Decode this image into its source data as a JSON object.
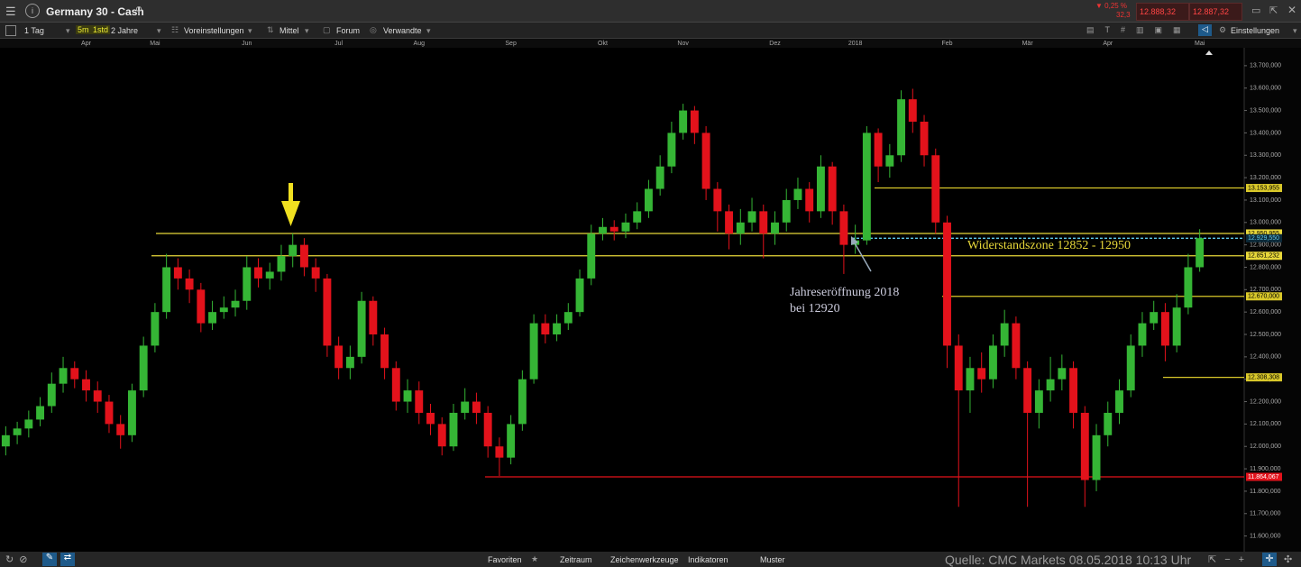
{
  "header": {
    "title": "Germany 30 - Cash",
    "change_pct": "▼ 0,25 %",
    "change_pts": "32,3",
    "sell": "12.888,32",
    "buy": "12.887,32"
  },
  "toolbar": {
    "interval": "1 Tag",
    "quick_5m": "5m",
    "quick_1h": "1std",
    "range": "2 Jahre",
    "presets": "Voreinstellungen",
    "size": "Mittel",
    "forum": "Forum",
    "related": "Verwandte",
    "settings": "Einstellungen"
  },
  "chart_data": {
    "type": "candlestick",
    "up_color": "#35b535",
    "down_color": "#e3121b",
    "categories": [
      null,
      null,
      null,
      null,
      null,
      null,
      null,
      "Apr",
      null,
      null,
      null,
      null,
      null,
      "Mai",
      null,
      null,
      null,
      null,
      null,
      null,
      null,
      "Jun",
      null,
      null,
      null,
      null,
      null,
      null,
      null,
      "Jul",
      null,
      null,
      null,
      null,
      null,
      null,
      "Aug",
      null,
      null,
      null,
      null,
      null,
      null,
      null,
      "Sep",
      null,
      null,
      null,
      null,
      null,
      null,
      null,
      "Okt",
      null,
      null,
      null,
      null,
      null,
      null,
      "Nov",
      null,
      null,
      null,
      null,
      null,
      null,
      null,
      "Dez",
      null,
      null,
      null,
      null,
      null,
      null,
      "2018",
      null,
      null,
      null,
      null,
      null,
      null,
      null,
      "Feb",
      null,
      null,
      null,
      null,
      null,
      null,
      "Mär",
      null,
      null,
      null,
      null,
      null,
      null,
      "Apr",
      null,
      null,
      null,
      null,
      null,
      null,
      null,
      "Mai"
    ],
    "open": [
      12000,
      12050,
      12080,
      12120,
      12180,
      12280,
      12350,
      12300,
      12250,
      12200,
      12100,
      12050,
      12250,
      12450,
      12600,
      12800,
      12750,
      12700,
      12550,
      12600,
      12620,
      12650,
      12800,
      12750,
      12780,
      12850,
      12900,
      12800,
      12750,
      12450,
      12350,
      12400,
      12650,
      12500,
      12350,
      12200,
      12250,
      12150,
      12100,
      12000,
      12150,
      12200,
      12150,
      12000,
      11950,
      12100,
      12300,
      12550,
      12500,
      12550,
      12600,
      12750,
      12950,
      12980,
      12960,
      13000,
      13050,
      13150,
      13250,
      13400,
      13500,
      13400,
      13150,
      13050,
      12950,
      13000,
      13050,
      12950,
      13000,
      13100,
      13150,
      13050,
      13250,
      13050,
      12900,
      12920,
      13400,
      13250,
      13300,
      13550,
      13450,
      13300,
      13000,
      12450,
      12250,
      12350,
      12300,
      12450,
      12550,
      12350,
      12150,
      12250,
      12300,
      12350,
      12150,
      11850,
      12050,
      12150,
      12250,
      12450,
      12550,
      12600,
      12450,
      12620,
      12800
    ],
    "high": [
      12090,
      12110,
      12160,
      12220,
      12330,
      12400,
      12380,
      12340,
      12290,
      12230,
      12140,
      12280,
      12490,
      12640,
      12860,
      12840,
      12790,
      12730,
      12650,
      12670,
      12700,
      12850,
      12840,
      12820,
      12900,
      12951,
      12930,
      12840,
      12770,
      12490,
      12450,
      12690,
      12670,
      12530,
      12380,
      12300,
      12290,
      12190,
      12130,
      12190,
      12260,
      12240,
      12180,
      12040,
      12140,
      12340,
      12590,
      12590,
      12590,
      12640,
      12790,
      12990,
      13020,
      13010,
      13040,
      13090,
      13190,
      13300,
      13450,
      13530,
      13520,
      13430,
      13180,
      13080,
      13060,
      13110,
      13080,
      13050,
      13150,
      13200,
      13180,
      13300,
      13270,
      13080,
      12990,
      13430,
      13420,
      13350,
      13590,
      13597,
      13480,
      13330,
      13030,
      12500,
      12400,
      12420,
      12500,
      12610,
      12580,
      12380,
      12300,
      12400,
      12410,
      12380,
      12180,
      12100,
      12200,
      12300,
      12500,
      12600,
      12650,
      12640,
      12680,
      12860,
      12970
    ],
    "low": [
      11960,
      12010,
      12040,
      12090,
      12150,
      12240,
      12260,
      12200,
      12150,
      12060,
      11990,
      12020,
      12220,
      12420,
      12570,
      12700,
      12640,
      12510,
      12520,
      12570,
      12580,
      12610,
      12710,
      12700,
      12740,
      12800,
      12760,
      12690,
      12400,
      12300,
      12300,
      12370,
      12450,
      12300,
      12160,
      12150,
      12100,
      12050,
      11960,
      11980,
      12120,
      12100,
      11950,
      11868,
      11920,
      12070,
      12280,
      12460,
      12470,
      12520,
      12580,
      12720,
      12920,
      12920,
      12930,
      12970,
      13020,
      13120,
      13220,
      13370,
      13350,
      13100,
      12960,
      12880,
      12900,
      12960,
      12840,
      12900,
      12960,
      13060,
      13000,
      13020,
      12990,
      12770,
      12860,
      12900,
      13180,
      13200,
      13270,
      13400,
      13250,
      12950,
      12350,
      11730,
      12150,
      12240,
      12260,
      12400,
      12300,
      11730,
      12080,
      12200,
      12250,
      12080,
      11730,
      11800,
      12000,
      12100,
      12220,
      12400,
      12520,
      12380,
      12420,
      12590,
      12780
    ],
    "close": [
      12050,
      12080,
      12120,
      12180,
      12280,
      12350,
      12300,
      12250,
      12200,
      12100,
      12050,
      12250,
      12450,
      12600,
      12800,
      12750,
      12700,
      12550,
      12600,
      12620,
      12650,
      12800,
      12750,
      12780,
      12850,
      12900,
      12800,
      12750,
      12450,
      12350,
      12400,
      12650,
      12500,
      12350,
      12200,
      12250,
      12150,
      12100,
      12000,
      12150,
      12200,
      12150,
      12000,
      11950,
      12100,
      12300,
      12550,
      12500,
      12550,
      12600,
      12750,
      12950,
      12980,
      12960,
      13000,
      13050,
      13150,
      13250,
      13400,
      13500,
      13400,
      13150,
      13050,
      12950,
      13000,
      13050,
      12950,
      13000,
      13100,
      13150,
      13050,
      13250,
      13050,
      12900,
      12920,
      13400,
      13250,
      13300,
      13550,
      13450,
      13300,
      13000,
      12450,
      12250,
      12350,
      12300,
      12450,
      12550,
      12350,
      12150,
      12250,
      12300,
      12350,
      12150,
      11850,
      12050,
      12150,
      12250,
      12450,
      12550,
      12600,
      12450,
      12620,
      12800,
      12930
    ],
    "ylim": [
      11530,
      13780
    ],
    "yticks": [
      {
        "value": 11600,
        "label": "11.600,000"
      },
      {
        "value": 11700,
        "label": "11.700,000"
      },
      {
        "value": 11800,
        "label": "11.800,000"
      },
      {
        "value": 11900,
        "label": "11.900,000"
      },
      {
        "value": 12000,
        "label": "12.000,000"
      },
      {
        "value": 12100,
        "label": "12.100,000"
      },
      {
        "value": 12200,
        "label": "12.200,000"
      },
      {
        "value": 12300,
        "label": "12.300,000"
      },
      {
        "value": 12400,
        "label": "12.400,000"
      },
      {
        "value": 12500,
        "label": "12.500,000"
      },
      {
        "value": 12600,
        "label": "12.600,000"
      },
      {
        "value": 12700,
        "label": "12.700,000"
      },
      {
        "value": 12800,
        "label": "12.800,000"
      },
      {
        "value": 12900,
        "label": "12.900,000"
      },
      {
        "value": 13000,
        "label": "13.000,000"
      },
      {
        "value": 13100,
        "label": "13.100,000"
      },
      {
        "value": 13200,
        "label": "13.200,000"
      },
      {
        "value": 13300,
        "label": "13.300,000"
      },
      {
        "value": 13400,
        "label": "13.400,000"
      },
      {
        "value": 13500,
        "label": "13.500,000"
      },
      {
        "value": 13600,
        "label": "13.600,000"
      },
      {
        "value": 13700,
        "label": "13.700,000"
      }
    ],
    "levels": [
      {
        "value": 13153.955,
        "label": "13.153,955",
        "color": "#d9c82a"
      },
      {
        "value": 12950.955,
        "label": "12.950,955",
        "color": "#e8d83a"
      },
      {
        "value": 12929.55,
        "label": "12.929,550",
        "color": "#5ec8e8",
        "dashed": true
      },
      {
        "value": 12851.232,
        "label": "12.851,232",
        "color": "#e8d83a"
      },
      {
        "value": 12670,
        "label": "12.670,000",
        "color": "#d9c82a"
      },
      {
        "value": 12308.308,
        "label": "12.308,308",
        "color": "#d9c82a"
      },
      {
        "value": 11864.067,
        "label": "11.864,067",
        "color": "#e3121b"
      }
    ],
    "annotations": [
      "Widerstandszone 12852 - 12950",
      "Jahreseröffnung 2018",
      "bei 12920"
    ]
  },
  "footer": {
    "favorites": "Favoriten",
    "period": "Zeitraum",
    "drawing": "Zeichenwerkzeuge",
    "indicators": "Indikatoren",
    "patterns": "Muster",
    "source": "Quelle: CMC Markets 08.05.2018 10:13 Uhr"
  }
}
